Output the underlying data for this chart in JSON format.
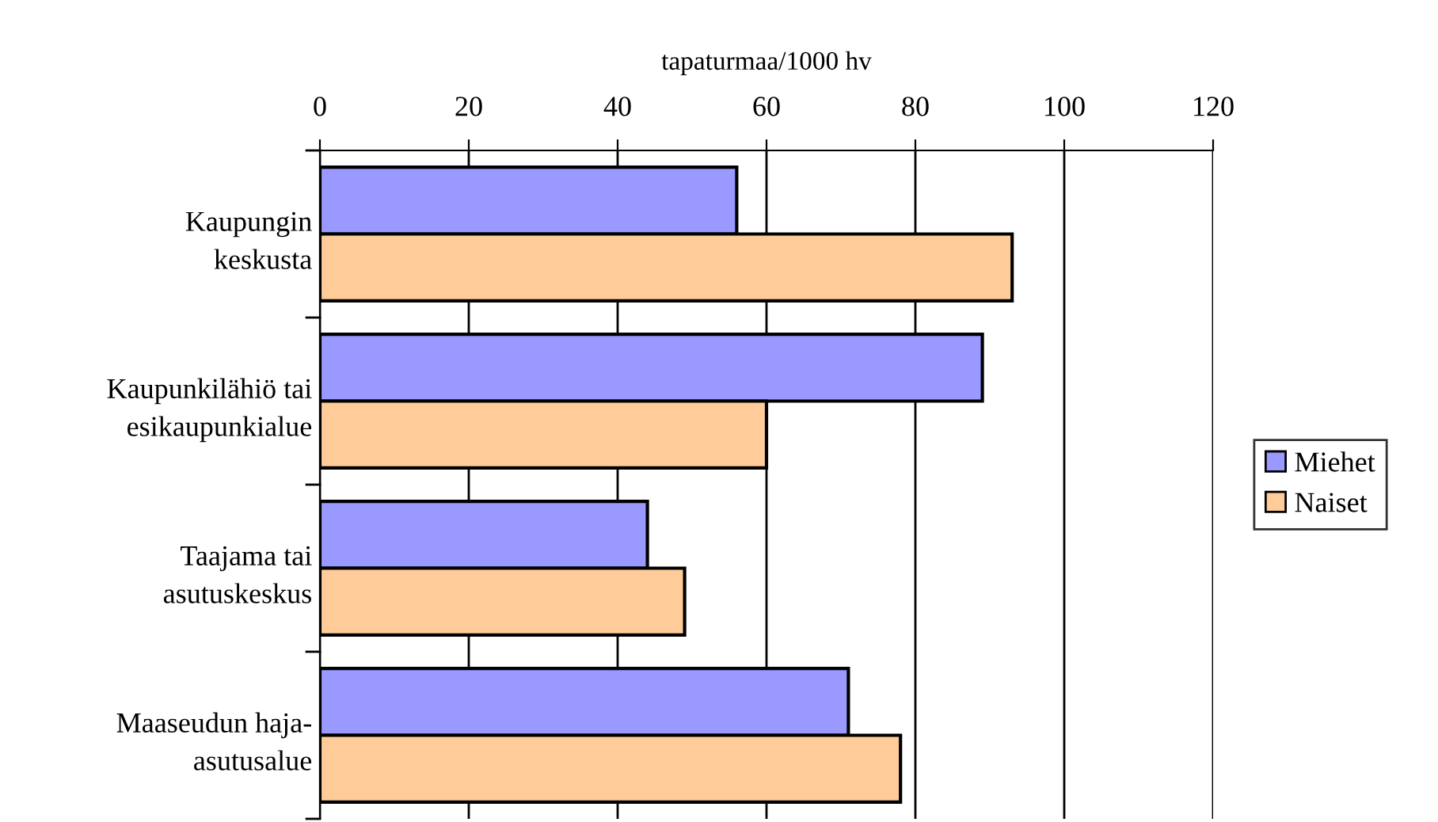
{
  "chart_data": {
    "type": "bar",
    "orientation": "horizontal",
    "xlabel": "tapaturmaa/1000 hv",
    "categories": [
      "Kaupungin\nkeskusta",
      "Kaupunkilähiö tai\nesikaupunkialue",
      "Taajama tai\nasutuskeskus",
      "Maaseudun haja-\nasutusalue"
    ],
    "series": [
      {
        "name": "Miehet",
        "color": "#9999ff",
        "values": [
          56,
          89,
          44,
          71
        ]
      },
      {
        "name": "Naiset",
        "color": "#ffcc99",
        "values": [
          93,
          60,
          49,
          78
        ]
      }
    ],
    "xlim": [
      0,
      120
    ],
    "xticks": [
      0,
      20,
      40,
      60,
      80,
      100,
      120
    ],
    "grid": "x",
    "legend": "right"
  }
}
